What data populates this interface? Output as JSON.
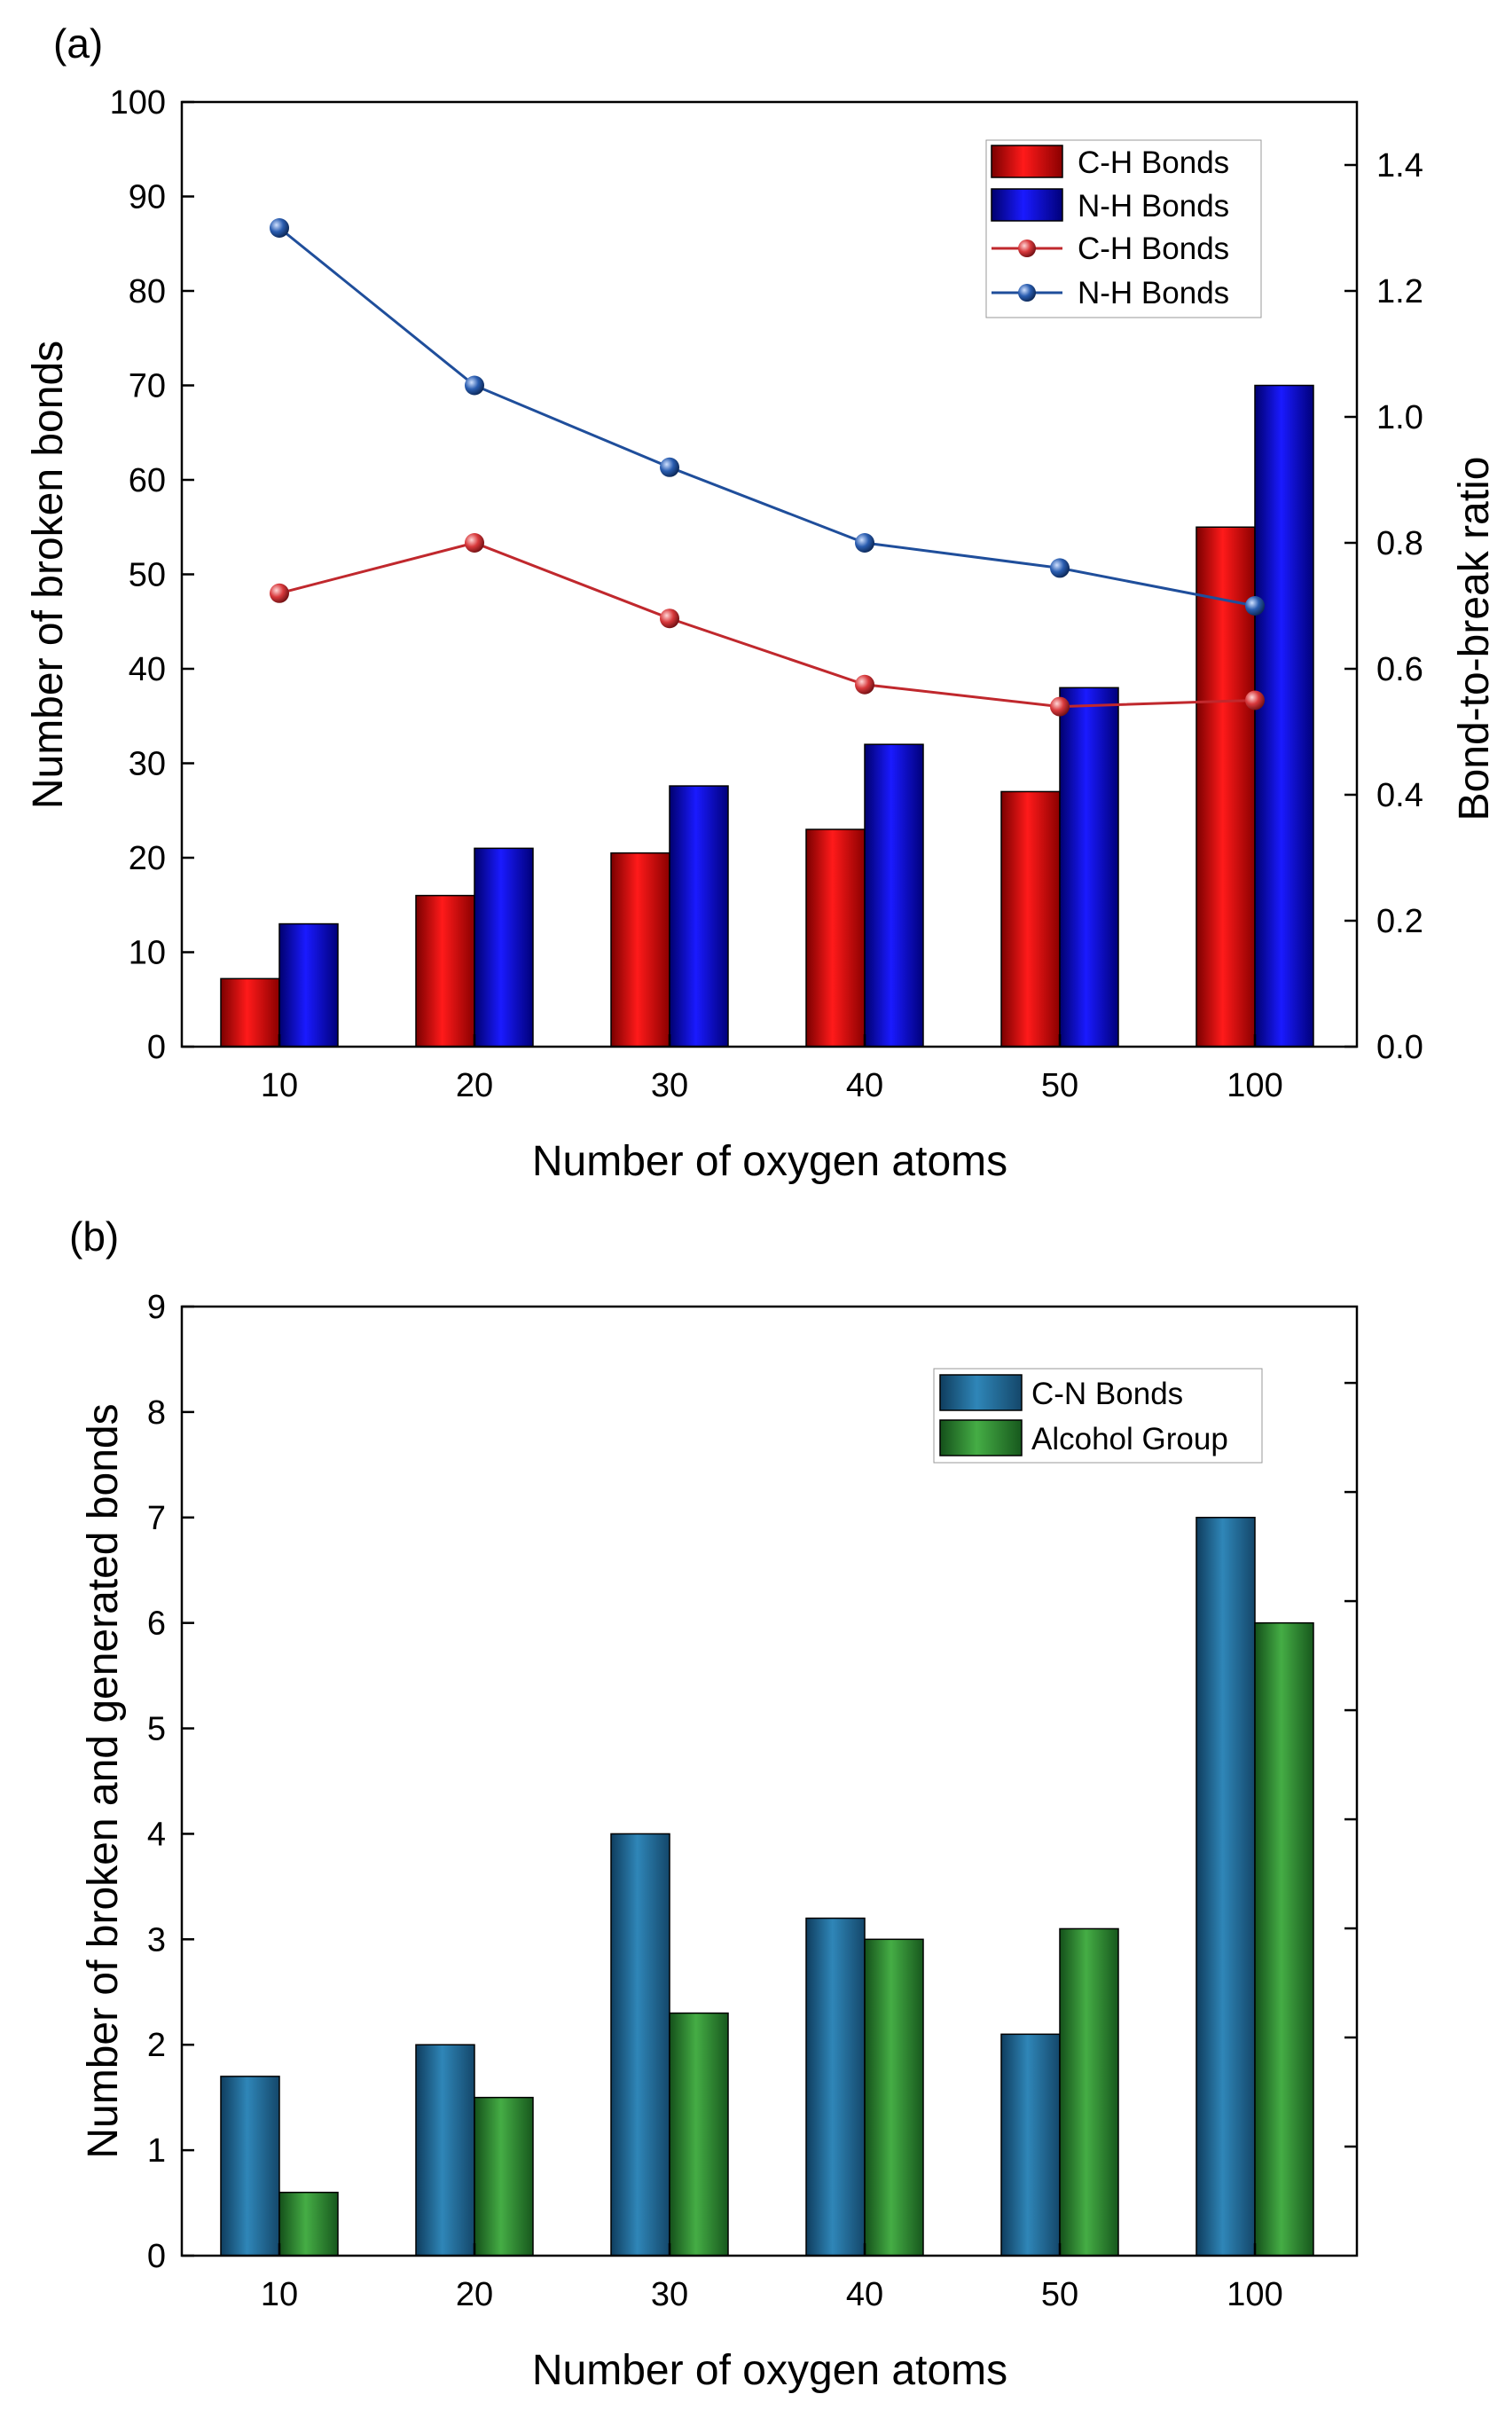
{
  "chart_data": [
    {
      "type": "bar+line",
      "panel_label": "(a)",
      "categories": [
        "10",
        "20",
        "30",
        "40",
        "50",
        "100"
      ],
      "xlabel": "Number of oxygen atoms",
      "ylabel": "Number of broken bonds",
      "ylabel_right": "Bond-to-break ratio",
      "ylim": [
        0,
        100
      ],
      "y_ticks": [
        "0",
        "10",
        "20",
        "30",
        "40",
        "50",
        "60",
        "70",
        "80",
        "90",
        "100"
      ],
      "ylim_right": [
        0,
        1.5
      ],
      "y_ticks_right": [
        "0.0",
        "0.2",
        "0.4",
        "0.6",
        "0.8",
        "1.0",
        "1.2",
        "1.4"
      ],
      "bar_series": [
        {
          "name": "C-H Bonds",
          "values": [
            7.2,
            16,
            20.5,
            23,
            27,
            55
          ],
          "color": "#e60000"
        },
        {
          "name": "N-H Bonds",
          "values": [
            13,
            21,
            27.6,
            32,
            38,
            70
          ],
          "color": "#0000f0"
        }
      ],
      "line_series": [
        {
          "name": "C-H Bonds",
          "axis": "right",
          "values": [
            0.72,
            0.8,
            0.68,
            0.575,
            0.54,
            0.55
          ],
          "color": "#c0282d"
        },
        {
          "name": "N-H Bonds",
          "axis": "right",
          "values": [
            1.3,
            1.05,
            0.92,
            0.8,
            0.76,
            0.7
          ],
          "color": "#1f4e9b"
        }
      ],
      "legend_position": "top-right"
    },
    {
      "type": "bar",
      "panel_label": "(b)",
      "categories": [
        "10",
        "20",
        "30",
        "40",
        "50",
        "100"
      ],
      "xlabel": "Number of oxygen atoms",
      "ylabel": "Number of broken and generated bonds",
      "ylim": [
        0,
        9
      ],
      "y_ticks": [
        "0",
        "1",
        "2",
        "3",
        "4",
        "5",
        "6",
        "7",
        "8",
        "9"
      ],
      "series": [
        {
          "name": "C-N Bonds",
          "values": [
            1.7,
            2.0,
            4.0,
            3.2,
            2.1,
            7.0
          ],
          "color": "#2b78a8"
        },
        {
          "name": "Alcohol Group",
          "values": [
            0.6,
            1.5,
            2.3,
            3.0,
            3.1,
            6.0
          ],
          "color": "#3a9a3a"
        }
      ],
      "legend_position": "top-right"
    }
  ]
}
